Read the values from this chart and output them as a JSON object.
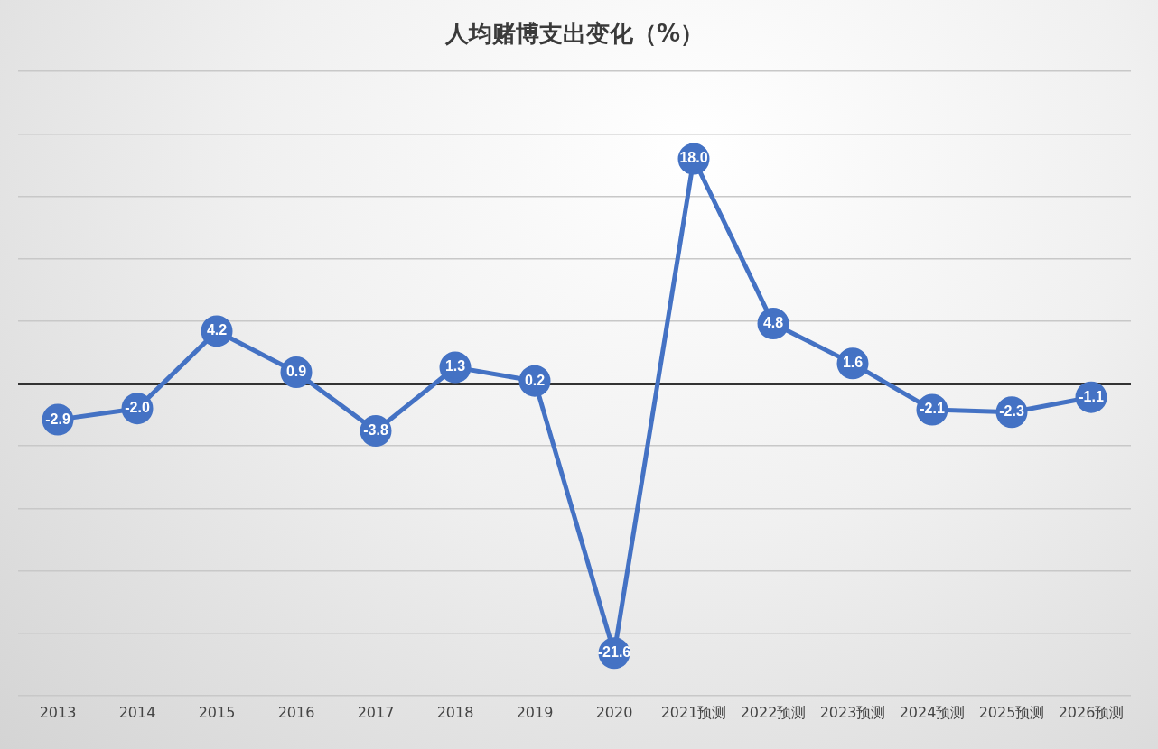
{
  "chart_data": {
    "type": "line",
    "title": "人均赌博支出变化（%）",
    "categories": [
      "2013",
      "2014",
      "2015",
      "2016",
      "2017",
      "2018",
      "2019",
      "2020",
      "2021预测",
      "2022预测",
      "2023预测",
      "2024预测",
      "2025预测",
      "2026预测"
    ],
    "series": [
      {
        "color": "#4472c4",
        "values": [
          -2.9,
          -2.0,
          4.2,
          0.9,
          -3.8,
          1.3,
          0.2,
          -21.6,
          18.0,
          4.8,
          1.6,
          -2.1,
          -2.3,
          -1.1
        ],
        "value_labels": [
          "-2.9",
          "-2.0",
          "4.2",
          "0.9",
          "-3.8",
          "1.3",
          "0.2",
          "-21.6",
          "18.0",
          "4.8",
          "1.6",
          "-2.1",
          "-2.3",
          "-1.1"
        ]
      }
    ],
    "ylim": [
      -25,
      25
    ],
    "yticks": [
      {
        "value": -25,
        "label": null
      },
      {
        "value": -20,
        "label": null
      },
      {
        "value": -15,
        "label": null
      },
      {
        "value": -10,
        "label": null
      },
      {
        "value": -5,
        "label": null
      },
      {
        "value": 0,
        "label": null
      },
      {
        "value": 5,
        "label": null
      },
      {
        "value": 10,
        "label": null
      },
      {
        "value": 15,
        "label": null
      },
      {
        "value": 20,
        "label": null
      },
      {
        "value": 25,
        "label": null
      }
    ],
    "tick_labels": "x",
    "grid": "y",
    "legend": false,
    "marker": "circle",
    "line_style": "solid"
  }
}
